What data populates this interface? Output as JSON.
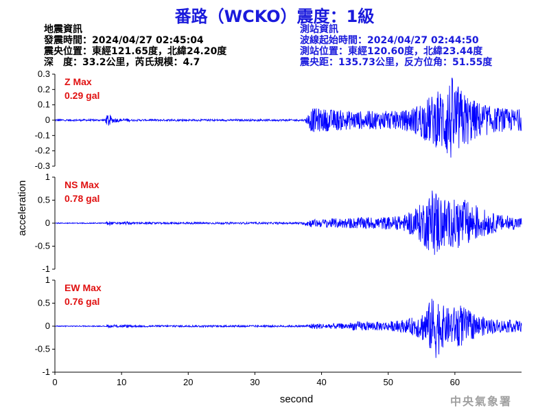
{
  "title": "番路（WCKO）震度：1級",
  "quake_info": {
    "heading": "地震資訊",
    "time": "發震時間：2024/04/27 02:45:04",
    "location": "震央位置：東經121.65度，北緯24.20度",
    "depth_mag": "深　度：33.2公里，芮氏規模：4.7"
  },
  "station_info": {
    "heading": "測站資訊",
    "wave_time": "波線起始時間：2024/04/27 02:44:50",
    "location": "測站位置：東經120.60度，北緯23.44度",
    "distance": "震央距：135.73公里，反方位角：51.55度"
  },
  "footer": "中央氣象署",
  "colors": {
    "trace": "#0000ff",
    "title": "#1a1adc",
    "max_label": "#e01010"
  },
  "chart_data": {
    "type": "line",
    "xlabel": "second",
    "ylabel": "acceleration",
    "xlim": [
      0,
      70
    ],
    "xticks": [
      0,
      10,
      20,
      30,
      40,
      50,
      60
    ],
    "panels": [
      {
        "component": "Z",
        "max_label": "Z Max",
        "max_value": "0.29 gal",
        "ylim": [
          -0.3,
          0.3
        ],
        "yticks": [
          -0.3,
          -0.2,
          -0.1,
          0,
          0.1,
          0.2,
          0.3
        ],
        "envelope": [
          [
            0,
            0.006
          ],
          [
            7.5,
            0.006
          ],
          [
            8,
            0.05
          ],
          [
            8.6,
            0.02
          ],
          [
            10,
            0.008
          ],
          [
            10.5,
            0.015
          ],
          [
            11.5,
            0.006
          ],
          [
            37.5,
            0.006
          ],
          [
            38.5,
            0.08
          ],
          [
            45,
            0.06
          ],
          [
            52,
            0.06
          ],
          [
            54,
            0.09
          ],
          [
            56,
            0.15
          ],
          [
            58,
            0.2
          ],
          [
            59.5,
            0.29
          ],
          [
            61,
            0.2
          ],
          [
            63,
            0.13
          ],
          [
            66,
            0.08
          ],
          [
            70,
            0.07
          ]
        ]
      },
      {
        "component": "NS",
        "max_label": "NS Max",
        "max_value": "0.78 gal",
        "ylim": [
          -1,
          1
        ],
        "yticks": [
          -1,
          -0.5,
          0,
          0.5,
          1
        ],
        "envelope": [
          [
            0,
            0.01
          ],
          [
            7.5,
            0.01
          ],
          [
            8,
            0.05
          ],
          [
            9,
            0.02
          ],
          [
            10,
            0.02
          ],
          [
            11,
            0.04
          ],
          [
            12,
            0.02
          ],
          [
            37,
            0.02
          ],
          [
            38,
            0.08
          ],
          [
            45,
            0.12
          ],
          [
            52,
            0.15
          ],
          [
            54,
            0.3
          ],
          [
            56,
            0.6
          ],
          [
            57,
            0.78
          ],
          [
            59,
            0.5
          ],
          [
            61,
            0.55
          ],
          [
            63,
            0.4
          ],
          [
            66,
            0.2
          ],
          [
            70,
            0.12
          ]
        ]
      },
      {
        "component": "EW",
        "max_label": "EW Max",
        "max_value": "0.76 gal",
        "ylim": [
          -1,
          1
        ],
        "yticks": [
          -1,
          -0.5,
          0,
          0.5,
          1
        ],
        "envelope": [
          [
            0,
            0.01
          ],
          [
            7.5,
            0.01
          ],
          [
            8,
            0.03
          ],
          [
            10.5,
            0.03
          ],
          [
            11,
            0.04
          ],
          [
            12,
            0.02
          ],
          [
            37.5,
            0.02
          ],
          [
            38.5,
            0.06
          ],
          [
            44,
            0.06
          ],
          [
            45,
            0.1
          ],
          [
            50,
            0.1
          ],
          [
            53,
            0.15
          ],
          [
            55,
            0.3
          ],
          [
            56.5,
            0.6
          ],
          [
            57,
            0.76
          ],
          [
            58.5,
            0.4
          ],
          [
            61,
            0.45
          ],
          [
            63,
            0.25
          ],
          [
            66,
            0.15
          ],
          [
            70,
            0.12
          ]
        ]
      }
    ]
  }
}
